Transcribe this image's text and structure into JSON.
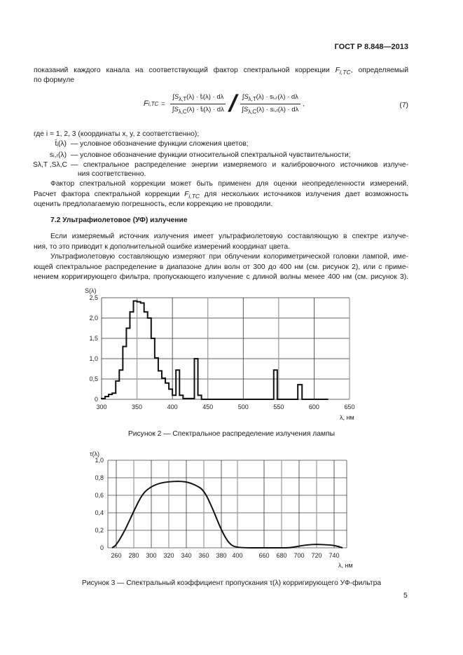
{
  "header": {
    "doc_id": "ГОСТ Р 8.848—2013"
  },
  "intro": {
    "line1": "показаний каждого канала на соответствующий фактор спектральной коррекции",
    "line1_sym": "F",
    "line1_sub": "i,TC",
    "line1_tail": ", определяемый",
    "line2": "по формуле"
  },
  "formula": {
    "lhs": "F",
    "lhs_sub": "i,TC",
    "eq": "=",
    "num1": "∫S",
    "num1_sub": "λ,T",
    "num1_rest": "(λ) · t̄ᵢ(λ) · dλ",
    "den1": "∫S",
    "den1_sub": "λ,C",
    "den1_rest": "(λ) · t̄ᵢ(λ) · dλ",
    "num2": "∫S",
    "num2_sub": "λ,T",
    "num2_rest": "(λ) · sᵢ,ᵣ(λ) · dλ",
    "den2": "∫S",
    "den2_sub": "λ,C",
    "den2_rest": "(λ) · sᵢ,ᵣ(λ) · dλ",
    "tail": ",",
    "number": "(7)"
  },
  "where": {
    "line": "где i = 1, 2, 3 (координаты x, y, z соответственно);",
    "defs": [
      {
        "symbol": "t̄ᵢ(λ)",
        "text": "— условное обозначение функции сложения цветов;"
      },
      {
        "symbol": "sᵢ,ᵣ(λ)",
        "text": "— условное обозначение функции относительной спектральной чувствительности;"
      },
      {
        "symbol": "Sλ,T ,Sλ,C",
        "text": "— спектральное распределение энергии измеряемого и калибровочного источников излуче-",
        "text2": "ния соответственно."
      }
    ]
  },
  "para_factor": {
    "line1": "Фактор спектральной коррекции может быть применен для оценки неопределенности измерений.",
    "line2a": "Расчет фактора спектральной коррекции",
    "line2_sym": "F",
    "line2_sub": "i,TC",
    "line2b": "для нескольких источников излучения дает возможность",
    "line3": "оценить предлолагаемую погрешность, если коррекцию не проводили."
  },
  "section": {
    "heading": "7.2 Ультрафиолетовое (УФ) излучение"
  },
  "para_uv1": [
    "Если измеряемый источник излучения имеет ультрафиолетовую составляющую в спектре излуче-",
    "ния, то это приводит к дополнительной ошибке измерений координат цвета."
  ],
  "para_uv2": [
    "Ультрафиолетовую составляющую измеряют при облучении колориметрической головки лампой, име-",
    "ющей спектральное распределение в диапазоне длин волн от 300 до 400 нм (см. рисунок 2), или с приме-",
    "нением корригирующего фильтра, пропускающего излучение с длиной волны менее 400 нм (см. рисунок 3)."
  ],
  "chart_data": [
    {
      "type": "line",
      "style": "step",
      "caption": "Рисунок 2 — Спектральное распределение излучения лампы",
      "ylabel": "S(λ)",
      "xlabel": "λ, нм",
      "xlim": [
        300,
        650
      ],
      "ylim": [
        0,
        2.5
      ],
      "xticks": [
        "300",
        "350",
        "400",
        "450",
        "500",
        "550",
        "600",
        "650"
      ],
      "yticks": [
        "0",
        "0,5",
        "1,0",
        "1,5",
        "2,0",
        "2,5"
      ],
      "grid": true,
      "bins": [
        [
          300,
          305,
          0.02
        ],
        [
          305,
          310,
          0.07
        ],
        [
          310,
          315,
          0.12
        ],
        [
          315,
          320,
          0.15
        ],
        [
          320,
          325,
          0.45
        ],
        [
          325,
          330,
          0.72
        ],
        [
          330,
          335,
          1.3
        ],
        [
          335,
          340,
          1.75
        ],
        [
          340,
          345,
          2.15
        ],
        [
          345,
          350,
          2.42
        ],
        [
          350,
          355,
          2.4
        ],
        [
          355,
          360,
          2.37
        ],
        [
          360,
          365,
          2.15
        ],
        [
          365,
          370,
          2.0
        ],
        [
          370,
          375,
          1.5
        ],
        [
          375,
          380,
          1.02
        ],
        [
          380,
          385,
          0.7
        ],
        [
          385,
          390,
          0.52
        ],
        [
          390,
          395,
          0.4
        ],
        [
          395,
          400,
          0.25
        ],
        [
          400,
          405,
          0.1
        ],
        [
          405,
          410,
          0.72
        ],
        [
          410,
          415,
          0.1
        ],
        [
          415,
          431,
          0.02
        ],
        [
          431,
          436,
          1.0
        ],
        [
          436,
          441,
          0.1
        ],
        [
          441,
          543,
          0
        ],
        [
          543,
          548,
          0.72
        ],
        [
          548,
          577,
          0
        ],
        [
          577,
          583,
          0.36
        ],
        [
          583,
          620,
          0
        ]
      ]
    },
    {
      "type": "line",
      "caption": "Рисунок 3 — Спектральный коэффициент пропускания τ(λ) корригирующего УФ-фильтра",
      "ylabel": "τ(λ)",
      "xlabel": "λ, нм",
      "ylim": [
        0,
        1.0
      ],
      "xticks": [
        "260",
        "280",
        "300",
        "320",
        "340",
        "360",
        "380",
        "400",
        "660",
        "680",
        "700",
        "720",
        "740"
      ],
      "yticks": [
        "0",
        "0,2",
        "0,4",
        "0,6",
        "0,8",
        "1,0"
      ],
      "grid": true,
      "x": [
        255,
        260,
        270,
        280,
        290,
        300,
        310,
        320,
        330,
        340,
        350,
        360,
        370,
        380,
        390,
        400,
        660,
        680,
        690,
        700,
        710,
        720,
        730,
        740,
        750
      ],
      "y": [
        0,
        0.03,
        0.2,
        0.42,
        0.62,
        0.7,
        0.74,
        0.755,
        0.76,
        0.755,
        0.72,
        0.66,
        0.45,
        0.2,
        0.04,
        0,
        0,
        0,
        0,
        0.02,
        0.035,
        0.04,
        0.035,
        0.03,
        0
      ]
    }
  ],
  "page_number": "5"
}
